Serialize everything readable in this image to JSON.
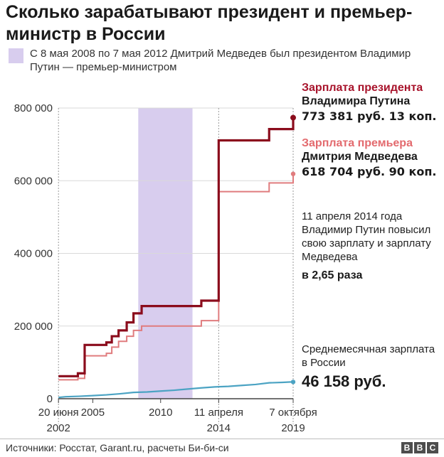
{
  "title": "Сколько зарабатывают президент и премьер-министр в России",
  "legend": {
    "text": "С 8 мая 2008 по 7 мая 2012 Дмитрий Медведев был президентом Владимир Путин — премьер-министром",
    "swatch_color": "#d8cdee"
  },
  "annotations": {
    "president_title": "Зарплата президента",
    "president_name": "Владимира Путина",
    "president_value": "773 381 руб. 13 коп.",
    "pm_title": "Зарплата премьера",
    "pm_name": "Дмитрия Медведева",
    "pm_value": "618 704 руб. 90 коп.",
    "note": "11 апреля 2014 года Владимир Путин повысил свою зарплату и зарплату Медведева",
    "note_bold": "в 2,65 раза",
    "avg_label": "Среднемесячная зарплата в России",
    "avg_value": "46 158 руб."
  },
  "source": "Источники: Росстат, Garant.ru, расчеты Би-би-си",
  "logo": [
    "B",
    "B",
    "C"
  ],
  "chart_data": {
    "type": "line",
    "step": true,
    "xlim": [
      2002.46,
      2019.77
    ],
    "ylim": [
      0,
      800000
    ],
    "yticks": [
      0,
      200000,
      400000,
      600000,
      800000
    ],
    "ytick_labels": [
      "0",
      "200 000",
      "400 000",
      "600 000",
      "800 000"
    ],
    "xticks": [
      {
        "x": 2002.47,
        "label": [
          "20 июня",
          "2002"
        ]
      },
      {
        "x": 2005.0,
        "label": [
          "2005"
        ]
      },
      {
        "x": 2010.0,
        "label": [
          "2010"
        ]
      },
      {
        "x": 2014.28,
        "label": [
          "11 апреля",
          "2014"
        ]
      },
      {
        "x": 2019.77,
        "label": [
          "7 октября",
          "2019"
        ]
      }
    ],
    "vlines": [
      2002.47,
      2014.28,
      2019.77
    ],
    "shaded_period": {
      "from": 2008.35,
      "to": 2012.35
    },
    "colors": {
      "president": "#8b0c1c",
      "pm": "#e07c7e",
      "average": "#4ba3c3",
      "shade": "#d8cdee"
    },
    "series": [
      {
        "key": "president",
        "x": [
          2002.47,
          2003.9,
          2004.4,
          2006.0,
          2006.4,
          2006.9,
          2007.5,
          2008.0,
          2008.6,
          2013.0,
          2014.28,
          2018.0,
          2019.77
        ],
        "values": [
          62000,
          70000,
          148000,
          155000,
          172000,
          188000,
          210000,
          235000,
          255000,
          270000,
          711000,
          742000,
          773381
        ]
      },
      {
        "key": "pm",
        "x": [
          2002.47,
          2003.9,
          2004.4,
          2006.0,
          2006.4,
          2006.9,
          2007.5,
          2008.0,
          2008.6,
          2013.0,
          2014.28,
          2018.0,
          2019.77
        ],
        "values": [
          52000,
          56000,
          118000,
          125000,
          142000,
          158000,
          172000,
          188000,
          200000,
          215000,
          570000,
          594000,
          618705
        ]
      },
      {
        "key": "average",
        "x": [
          2002.47,
          2003.0,
          2004.0,
          2005.0,
          2006.0,
          2007.0,
          2008.0,
          2009.0,
          2010.0,
          2011.0,
          2012.0,
          2013.0,
          2014.0,
          2015.0,
          2016.0,
          2017.0,
          2018.0,
          2019.0,
          2019.5,
          2019.77
        ],
        "values": [
          3500,
          5500,
          6700,
          8500,
          10600,
          13600,
          17300,
          18600,
          21000,
          23400,
          26600,
          29800,
          32500,
          34000,
          36700,
          39200,
          43700,
          45000,
          46000,
          46158
        ]
      }
    ]
  }
}
